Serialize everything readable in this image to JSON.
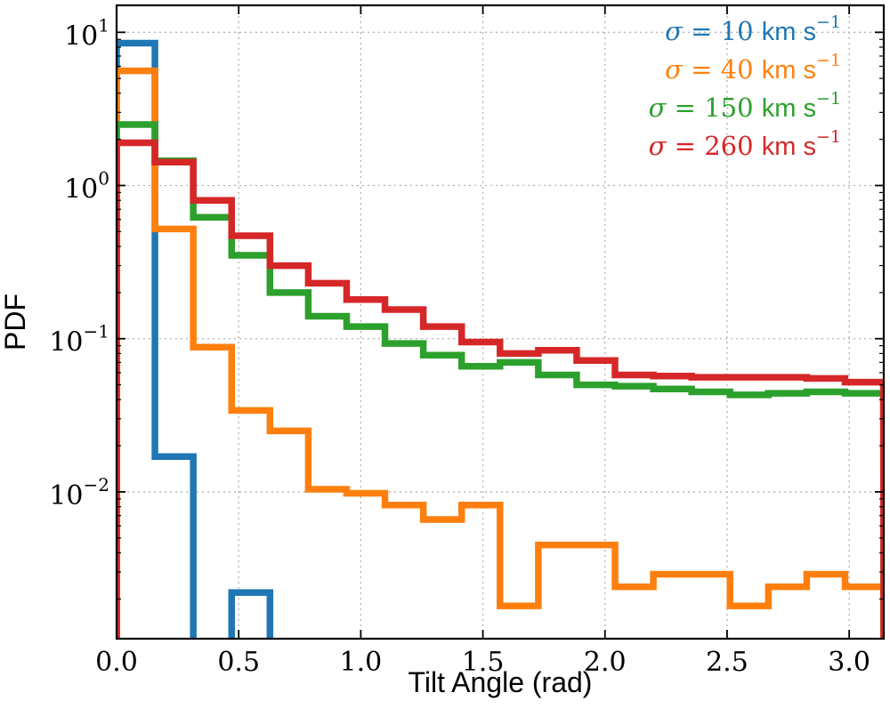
{
  "chart_data": {
    "type": "step-histogram",
    "xlabel": "Tilt Angle (rad)",
    "ylabel": "PDF",
    "xlim": [
      0,
      3.1416
    ],
    "ylim": [
      0.0011,
      15
    ],
    "yscale": "log",
    "grid": true,
    "legend_position": "top-right",
    "x_ticks": [
      "0.0",
      "0.5",
      "1.0",
      "1.5",
      "2.0",
      "2.5",
      "3.0"
    ],
    "x_tick_values": [
      0,
      0.5,
      1.0,
      1.5,
      2.0,
      2.5,
      3.0
    ],
    "y_ticks": [
      {
        "base": "10",
        "exp": "1",
        "value": 10
      },
      {
        "base": "10",
        "exp": "0",
        "value": 1
      },
      {
        "base": "10",
        "exp": "−1",
        "value": 0.1
      },
      {
        "base": "10",
        "exp": "−2",
        "value": 0.01
      }
    ],
    "bin_width": 0.157,
    "series": [
      {
        "name": "σ = 10 km s⁻¹",
        "legend": {
          "sym": "σ",
          "eq": "= 10",
          "unit": "km s",
          "exp": "−1"
        },
        "color": "#1f77b4",
        "values": [
          8.5,
          0.017,
          0,
          0.0022,
          0,
          0,
          0,
          0,
          0,
          0,
          0,
          0,
          0,
          0,
          0,
          0,
          0,
          0,
          0,
          0
        ]
      },
      {
        "name": "σ = 40 km s⁻¹",
        "legend": {
          "sym": "σ",
          "eq": "= 40",
          "unit": "km s",
          "exp": "−1"
        },
        "color": "#ff7f0e",
        "values": [
          5.6,
          0.52,
          0.088,
          0.034,
          0.025,
          0.0104,
          0.0098,
          0.0082,
          0.0066,
          0.0082,
          0.0018,
          0.0045,
          0.0045,
          0.0024,
          0.0029,
          0.0029,
          0.0018,
          0.0024,
          0.0029,
          0.0024
        ]
      },
      {
        "name": "σ = 150 km s⁻¹",
        "legend": {
          "sym": "σ",
          "eq": "= 150",
          "unit": "km s",
          "exp": "−1"
        },
        "color": "#2ca02c",
        "values": [
          2.5,
          1.45,
          0.62,
          0.35,
          0.2,
          0.14,
          0.12,
          0.093,
          0.078,
          0.066,
          0.07,
          0.058,
          0.05,
          0.049,
          0.047,
          0.045,
          0.043,
          0.044,
          0.045,
          0.044
        ]
      },
      {
        "name": "σ = 260 km s⁻¹",
        "legend": {
          "sym": "σ",
          "eq": "= 260",
          "unit": "km s",
          "exp": "−1"
        },
        "color": "#d62728",
        "values": [
          1.9,
          1.42,
          0.8,
          0.47,
          0.3,
          0.23,
          0.18,
          0.155,
          0.12,
          0.095,
          0.08,
          0.084,
          0.072,
          0.058,
          0.057,
          0.056,
          0.056,
          0.056,
          0.055,
          0.052
        ]
      }
    ]
  }
}
